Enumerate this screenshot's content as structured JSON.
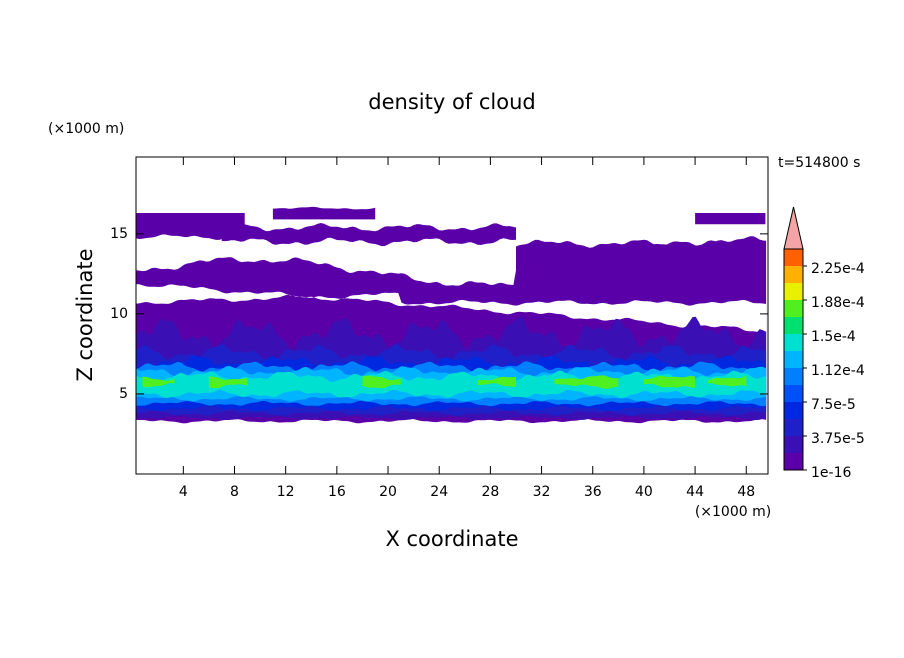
{
  "chart_data": {
    "type": "contour",
    "title": "density of cloud",
    "x_label": "X coordinate",
    "y_label": "Z coordinate",
    "x_unit": "(×1000 m)",
    "y_unit": "(×1000 m)",
    "time_label": "t=514800 s",
    "xlim": [
      0.3,
      49.7
    ],
    "ylim": [
      0,
      19.8
    ],
    "xticks": [
      4,
      8,
      12,
      16,
      20,
      24,
      28,
      32,
      36,
      40,
      44,
      48
    ],
    "yticks": [
      5,
      10,
      15
    ],
    "clim": [
      0,
      0.00024375
    ],
    "colors": [
      "#5a00a8",
      "#3a10b4",
      "#2020c8",
      "#0028e0",
      "#0050f8",
      "#0080ff",
      "#00b4ff",
      "#00e0d0",
      "#00e070",
      "#50f020",
      "#e8f000",
      "#ffb000",
      "#ff6000"
    ],
    "extend_color": "#f4a4a4",
    "cticks": [
      {
        "value": 1e-16,
        "label": "1e-16"
      },
      {
        "value": 3.75e-05,
        "label": "3.75e-5"
      },
      {
        "value": 7.5e-05,
        "label": "7.5e-5"
      },
      {
        "value": 0.0001125,
        "label": "1.12e-4"
      },
      {
        "value": 0.00015,
        "label": "1.5e-4"
      },
      {
        "value": 0.0001875,
        "label": "1.88e-4"
      },
      {
        "value": 0.000225,
        "label": "2.25e-4"
      }
    ]
  }
}
